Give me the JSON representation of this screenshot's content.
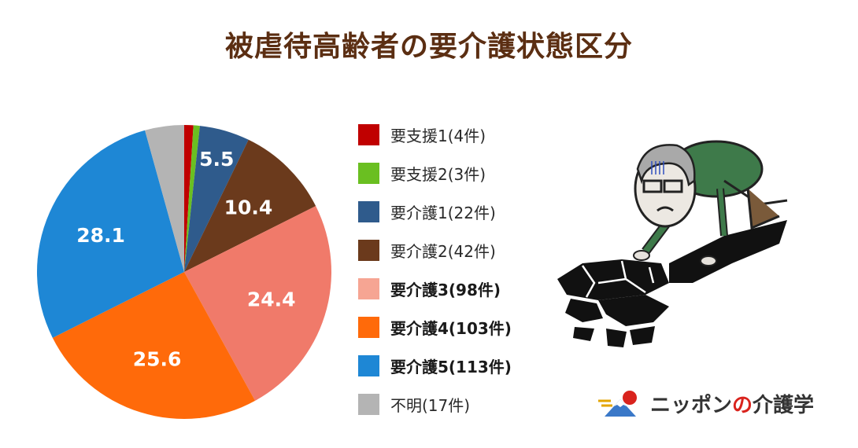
{
  "title": "被虐待高齢者の要介護状態区分",
  "chart_data": {
    "type": "pie",
    "start_angle_deg": 0,
    "direction": "clockwise",
    "slices": [
      {
        "label": "要支援1(4件)",
        "value": 1.0,
        "data_label": "",
        "color": "#c00000"
      },
      {
        "label": "要支援2(3件)",
        "value": 0.7,
        "data_label": "",
        "color": "#6abf21"
      },
      {
        "label": "要介護1(22件)",
        "value": 5.5,
        "data_label": "5.5",
        "color": "#2f5b8c"
      },
      {
        "label": "要介護2(42件)",
        "value": 10.4,
        "data_label": "10.4",
        "color": "#6b3a1c"
      },
      {
        "label": "要介護3(98件)",
        "value": 24.4,
        "data_label": "24.4",
        "color": "#f07a6a"
      },
      {
        "label": "要介護4(103件)",
        "value": 25.6,
        "data_label": "25.6",
        "color": "#ff6a0a"
      },
      {
        "label": "要介護5(113件)",
        "value": 28.1,
        "data_label": "28.1",
        "color": "#1e87d5"
      },
      {
        "label": "不明(17件)",
        "value": 4.3,
        "data_label": "",
        "color": "#b4b4b4"
      }
    ]
  },
  "legend": [
    {
      "label": "要支援1(4件)",
      "color": "#c00000",
      "bold": false
    },
    {
      "label": " 要支援2(3件)",
      "color": "#6abf21",
      "bold": false
    },
    {
      "label": "要介護1(22件)",
      "color": "#2f5b8c",
      "bold": false
    },
    {
      "label": "要介護2(42件)",
      "color": "#6b3a1c",
      "bold": false
    },
    {
      "label": "要介護3(98件)",
      "color": "#f6a593",
      "bold": true
    },
    {
      "label": "要介護4(103件)",
      "color": "#ff6a0a",
      "bold": true
    },
    {
      "label": "要介護5(113件)",
      "color": "#1e87d5",
      "bold": true
    },
    {
      "label": "不明(17件)",
      "color": "#b4b4b4",
      "bold": false
    }
  ],
  "logo": {
    "part1": "ニッポン",
    "part2": "の",
    "part3": "介護学"
  }
}
